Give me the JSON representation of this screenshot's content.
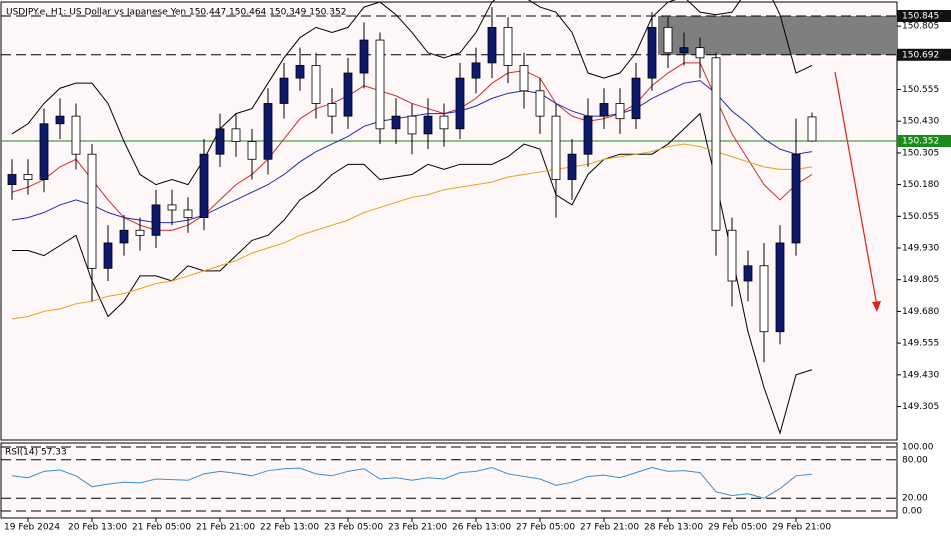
{
  "chart_data": {
    "type": "candlestick",
    "title": "USDJPY.e, H1:  US Dollar vs Japanese Yen  150.447 150.464 150.349 150.352",
    "categories": [
      null,
      "19 Feb 2024",
      null,
      null,
      null,
      "20 Feb 13:00",
      null,
      null,
      null,
      "21 Feb 05:00",
      null,
      null,
      null,
      "21 Feb 21:00",
      null,
      null,
      null,
      "22 Feb 13:00",
      null,
      null,
      null,
      "23 Feb 05:00",
      null,
      null,
      null,
      "23 Feb 21:00",
      null,
      null,
      null,
      "26 Feb 13:00",
      null,
      null,
      null,
      "27 Feb 05:00",
      null,
      null,
      null,
      "27 Feb 21:00",
      null,
      null,
      null,
      "28 Feb 13:00",
      null,
      null,
      null,
      "29 Feb 05:00",
      null,
      null,
      null,
      "29 Feb 21:00",
      null
    ],
    "open": [
      150.18,
      150.22,
      150.2,
      150.42,
      150.45,
      150.3,
      149.85,
      149.95,
      150.0,
      149.98,
      150.1,
      150.08,
      150.05,
      150.3,
      150.4,
      150.35,
      150.28,
      150.5,
      150.6,
      150.65,
      150.5,
      150.45,
      150.62,
      150.75,
      150.4,
      150.45,
      150.38,
      150.45,
      150.4,
      150.6,
      150.66,
      150.8,
      150.65,
      150.55,
      150.45,
      150.2,
      150.3,
      150.45,
      150.5,
      150.44,
      150.6,
      150.8,
      150.7,
      150.72,
      150.68,
      150.0,
      149.8,
      149.86,
      149.6,
      149.95,
      150.447
    ],
    "high": [
      150.28,
      150.28,
      150.48,
      150.52,
      150.5,
      150.34,
      150.02,
      150.06,
      150.05,
      150.16,
      150.16,
      150.13,
      150.36,
      150.46,
      150.46,
      150.4,
      150.56,
      150.66,
      150.72,
      150.7,
      150.56,
      150.68,
      150.82,
      150.78,
      150.52,
      150.5,
      150.52,
      150.5,
      150.66,
      150.72,
      150.88,
      150.84,
      150.7,
      150.6,
      150.5,
      150.36,
      150.52,
      150.56,
      150.56,
      150.66,
      150.86,
      150.84,
      150.78,
      150.76,
      150.7,
      150.05,
      149.92,
      149.95,
      150.02,
      150.44,
      150.464
    ],
    "low": [
      150.12,
      150.14,
      150.15,
      150.36,
      150.24,
      149.72,
      149.8,
      149.9,
      149.92,
      149.93,
      150.02,
      149.99,
      150.0,
      150.25,
      150.29,
      150.2,
      150.22,
      150.44,
      150.55,
      150.44,
      150.38,
      150.4,
      150.56,
      150.34,
      150.34,
      150.3,
      150.32,
      150.33,
      150.36,
      150.54,
      150.6,
      150.58,
      150.48,
      150.38,
      150.05,
      150.12,
      150.25,
      150.4,
      150.38,
      150.4,
      150.55,
      150.64,
      150.65,
      150.6,
      149.9,
      149.7,
      149.72,
      149.48,
      149.55,
      149.9,
      150.349
    ],
    "close": [
      150.22,
      150.2,
      150.42,
      150.45,
      150.3,
      149.85,
      149.95,
      150.0,
      149.98,
      150.1,
      150.08,
      150.05,
      150.3,
      150.4,
      150.35,
      150.28,
      150.5,
      150.6,
      150.65,
      150.5,
      150.45,
      150.62,
      150.75,
      150.4,
      150.45,
      150.38,
      150.45,
      150.4,
      150.6,
      150.66,
      150.8,
      150.65,
      150.55,
      150.45,
      150.2,
      150.3,
      150.45,
      150.5,
      150.44,
      150.6,
      150.8,
      150.7,
      150.72,
      150.68,
      150.0,
      149.8,
      149.86,
      149.6,
      149.95,
      150.3,
      150.352
    ],
    "up_color": "#0d1a6e",
    "down_color": "#ffffff",
    "lines": [
      {
        "color": "#000000",
        "values": [
          150.38,
          150.42,
          150.5,
          150.56,
          150.58,
          150.58,
          150.5,
          150.35,
          150.22,
          150.18,
          150.2,
          150.18,
          150.28,
          150.4,
          150.46,
          150.48,
          150.58,
          150.68,
          150.76,
          150.8,
          150.78,
          150.8,
          150.88,
          150.9,
          150.85,
          150.78,
          150.7,
          150.68,
          150.7,
          150.78,
          150.9,
          150.95,
          150.92,
          150.88,
          150.86,
          150.78,
          150.62,
          150.6,
          150.62,
          150.7,
          150.84,
          150.9,
          150.92,
          150.86,
          150.85,
          150.86,
          150.95,
          150.98,
          150.85,
          150.62,
          150.65
        ]
      },
      {
        "color": "#000000",
        "values": [
          149.92,
          149.92,
          149.9,
          149.94,
          149.98,
          149.8,
          149.66,
          149.72,
          149.82,
          149.82,
          149.8,
          149.86,
          149.84,
          149.84,
          149.9,
          149.96,
          149.98,
          150.04,
          150.12,
          150.16,
          150.22,
          150.26,
          150.26,
          150.2,
          150.21,
          150.22,
          150.26,
          150.24,
          150.26,
          150.26,
          150.26,
          150.29,
          150.34,
          150.32,
          150.14,
          150.1,
          150.22,
          150.28,
          150.3,
          150.3,
          150.3,
          150.34,
          150.4,
          150.46,
          150.19,
          149.9,
          149.6,
          149.38,
          149.2,
          149.43,
          149.45
        ]
      },
      {
        "color": "#d42a2a",
        "values": [
          150.15,
          150.17,
          150.2,
          150.25,
          150.28,
          150.2,
          150.12,
          150.05,
          150.02,
          150.0,
          150.0,
          150.02,
          150.06,
          150.12,
          150.18,
          150.22,
          150.28,
          150.36,
          150.44,
          150.48,
          150.5,
          150.53,
          150.57,
          150.55,
          150.53,
          150.5,
          150.48,
          150.46,
          150.48,
          150.52,
          150.58,
          150.62,
          150.63,
          150.6,
          150.5,
          150.45,
          150.43,
          150.44,
          150.46,
          150.5,
          150.57,
          150.62,
          150.66,
          150.66,
          150.52,
          150.38,
          150.28,
          150.18,
          150.12,
          150.18,
          150.22
        ]
      },
      {
        "color": "#1f2fb0",
        "values": [
          150.04,
          150.05,
          150.07,
          150.1,
          150.12,
          150.1,
          150.07,
          150.05,
          150.04,
          150.03,
          150.03,
          150.04,
          150.06,
          150.09,
          150.12,
          150.15,
          150.18,
          150.22,
          150.27,
          150.31,
          150.34,
          150.37,
          150.41,
          150.43,
          150.44,
          150.45,
          150.46,
          150.46,
          150.47,
          150.49,
          150.52,
          150.54,
          150.55,
          150.54,
          150.5,
          150.47,
          150.45,
          150.45,
          150.46,
          150.48,
          150.52,
          150.55,
          150.58,
          150.59,
          150.54,
          150.47,
          150.42,
          150.36,
          150.32,
          150.3,
          150.31
        ]
      },
      {
        "color": "#e8a317",
        "values": [
          149.65,
          149.66,
          149.68,
          149.69,
          149.71,
          149.72,
          149.74,
          149.75,
          149.77,
          149.79,
          149.8,
          149.82,
          149.84,
          149.86,
          149.88,
          149.91,
          149.93,
          149.95,
          149.98,
          150.0,
          150.02,
          150.04,
          150.07,
          150.09,
          150.11,
          150.13,
          150.14,
          150.16,
          150.17,
          150.18,
          150.19,
          150.21,
          150.22,
          150.23,
          150.24,
          150.25,
          150.26,
          150.28,
          150.29,
          150.3,
          150.31,
          150.33,
          150.34,
          150.33,
          150.31,
          150.29,
          150.27,
          150.25,
          150.24,
          150.24,
          150.25
        ]
      }
    ],
    "ylim": [
      149.173,
      150.908
    ],
    "yticks": [
      150.805,
      150.555,
      {
        "value": 150.43,
        "label": "150.430"
      },
      150.305,
      {
        "value": 150.18,
        "label": "150.180"
      },
      150.055,
      {
        "value": 149.93,
        "label": "149.930"
      },
      149.805,
      {
        "value": 149.68,
        "label": "149.680"
      },
      149.555,
      {
        "value": 149.43,
        "label": "149.430"
      },
      149.305
    ],
    "levels": [
      150.845,
      150.692
    ],
    "level_labels": [
      "150.845",
      "150.692"
    ],
    "current_price": 150.352,
    "current_price_label": "150.352",
    "rsi": {
      "label": "RSI(14) 57.33",
      "color": "#3d8fd1",
      "values": [
        55,
        52,
        62,
        64,
        55,
        38,
        42,
        45,
        44,
        50,
        49,
        48,
        58,
        62,
        59,
        55,
        63,
        66,
        67,
        58,
        55,
        62,
        66,
        50,
        52,
        48,
        52,
        50,
        60,
        62,
        68,
        58,
        54,
        50,
        40,
        45,
        54,
        56,
        52,
        60,
        68,
        62,
        63,
        60,
        30,
        24,
        27,
        20,
        35,
        55,
        57.33
      ],
      "ylim": [
        0,
        100
      ],
      "yticks": [
        {
          "value": 100,
          "label": "100.00"
        },
        {
          "value": 80,
          "label": "80.00"
        },
        {
          "value": 20,
          "label": "20.00"
        },
        {
          "value": 0,
          "label": "0.00"
        }
      ]
    }
  }
}
